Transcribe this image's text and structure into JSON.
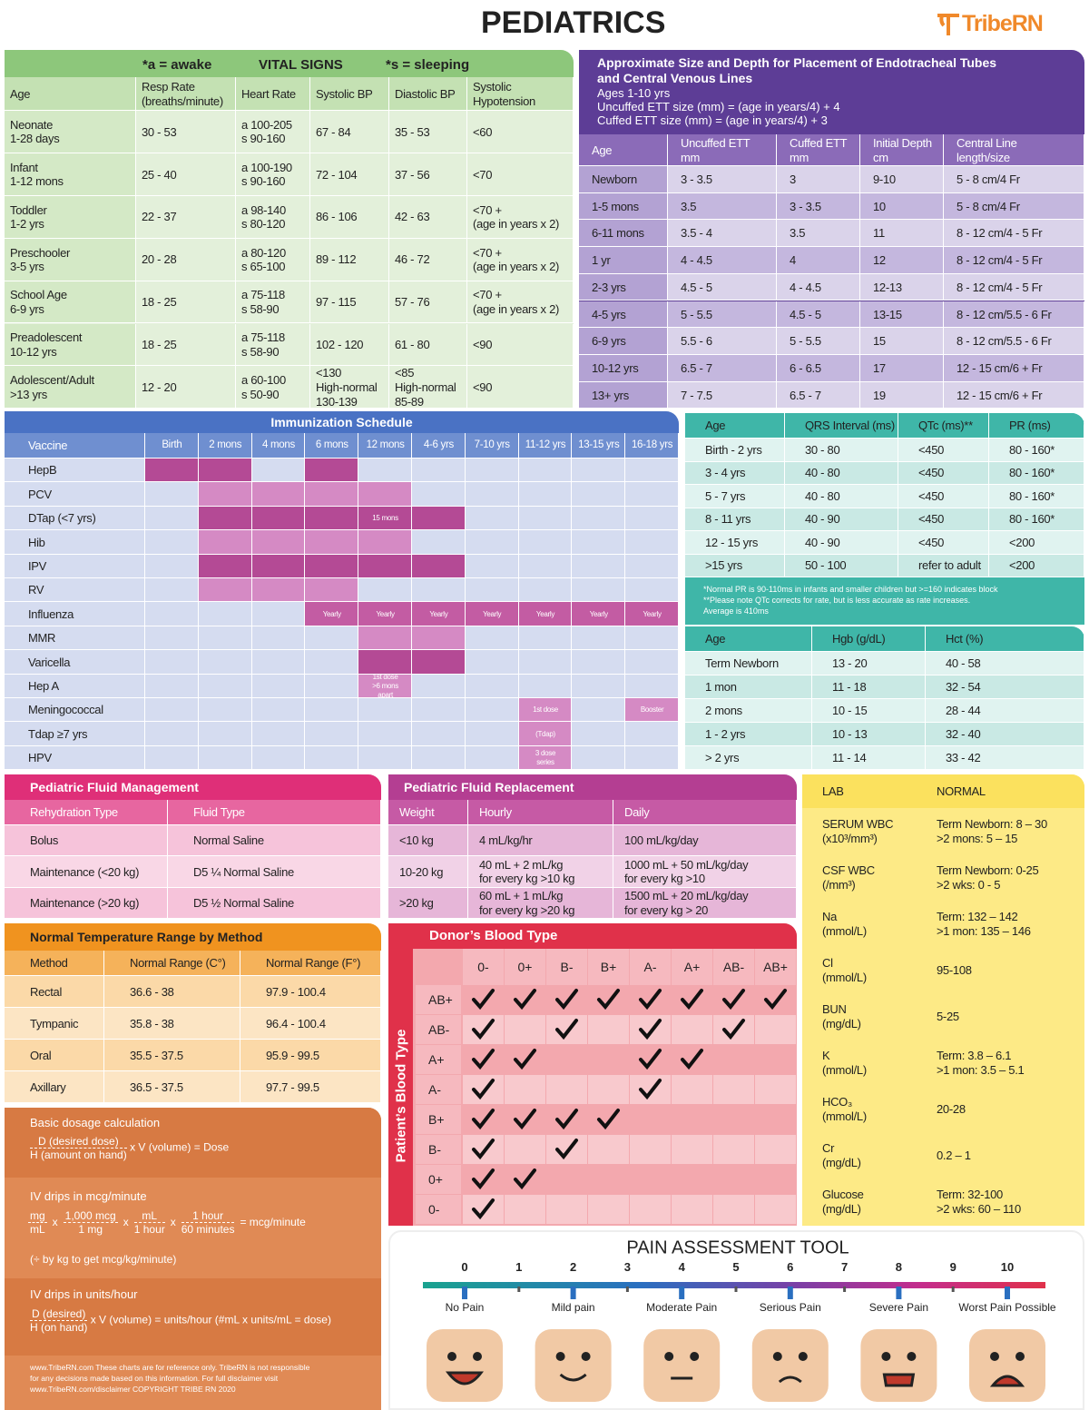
{
  "header": {
    "title": "PEDIATRICS",
    "logo": "TribeRN"
  },
  "vital_signs": {
    "note_awake": "*a = awake",
    "title": "VITAL SIGNS",
    "note_sleeping": "*s = sleeping",
    "columns": [
      "Age",
      [
        "Resp Rate",
        "(breaths/minute)"
      ],
      "Heart Rate",
      "Systolic BP",
      "Diastolic BP",
      [
        "Systolic",
        "Hypotension"
      ]
    ],
    "rows": [
      [
        [
          "Neonate",
          "1-28 days"
        ],
        "30 - 53",
        [
          "a 100-205",
          "s 90-160"
        ],
        "67 - 84",
        "35 - 53",
        "<60"
      ],
      [
        [
          "Infant",
          "1-12 mons"
        ],
        "25 - 40",
        [
          "a 100-190",
          "s 90-160"
        ],
        "72 - 104",
        "37 - 56",
        "<70"
      ],
      [
        [
          "Toddler",
          "1-2 yrs"
        ],
        "22 - 37",
        [
          "a 98-140",
          "s 80-120"
        ],
        "86 - 106",
        "42 - 63",
        [
          "<70 +",
          "(age in years x 2)"
        ]
      ],
      [
        [
          "Preschooler",
          "3-5 yrs"
        ],
        "20 - 28",
        [
          "a 80-120",
          "s 65-100"
        ],
        "89 - 112",
        "46 - 72",
        [
          "<70 +",
          "(age in years x 2)"
        ]
      ],
      [
        [
          "School Age",
          "6-9 yrs"
        ],
        "18 - 25",
        [
          "a 75-118",
          "s 58-90"
        ],
        "97 - 115",
        "57 - 76",
        [
          "<70 +",
          "(age in years x 2)"
        ]
      ],
      [
        [
          "Preadolescent",
          "10-12 yrs"
        ],
        "18 - 25",
        [
          "a 75-118",
          "s 58-90"
        ],
        "102 - 120",
        "61 - 80",
        "<90"
      ],
      [
        [
          "Adolescent/Adult",
          ">13 yrs"
        ],
        "12 - 20",
        [
          "a 60-100",
          "s 50-90"
        ],
        [
          "<130",
          "High-normal",
          "130-139"
        ],
        [
          "<85",
          "High-normal",
          "85-89"
        ],
        "<90"
      ]
    ]
  },
  "ett": {
    "title": [
      "Approximate Size and Depth for Placement of Endotracheal Tubes",
      "and Central Venous Lines"
    ],
    "formulas": [
      "Ages 1-10 yrs",
      "Uncuffed ETT size (mm) = (age in years/4) + 4",
      "Cuffed ETT size (mm) = (age in years/4) + 3"
    ],
    "columns": [
      "Age",
      [
        "Uncuffed ETT",
        "mm"
      ],
      [
        "Cuffed ETT",
        "mm"
      ],
      [
        "Initial Depth",
        "cm"
      ],
      [
        "Central Line",
        "length/size"
      ]
    ],
    "rows": [
      [
        "Newborn",
        "3 - 3.5",
        "3",
        "9-10",
        "5 - 8 cm/4 Fr"
      ],
      [
        "1-5 mons",
        "3.5",
        "3 - 3.5",
        "10",
        "5 - 8 cm/4 Fr"
      ],
      [
        "6-11 mons",
        "3.5 - 4",
        "3.5",
        "11",
        "8 - 12 cm/4 - 5 Fr"
      ],
      [
        "1 yr",
        "4 - 4.5",
        "4",
        "12",
        "8 - 12 cm/4 - 5 Fr"
      ],
      [
        "2-3 yrs",
        "4.5 - 5",
        "4 - 4.5",
        "12-13",
        "8 - 12 cm/4 - 5 Fr"
      ],
      [
        "4-5 yrs",
        "5 - 5.5",
        "4.5 - 5",
        "13-15",
        "8 - 12 cm/5.5 - 6 Fr"
      ],
      [
        "6-9 yrs",
        "5.5 - 6",
        "5 - 5.5",
        "15",
        "8 - 12 cm/5.5 - 6 Fr"
      ],
      [
        "10-12 yrs",
        "6.5 - 7",
        "6 - 6.5",
        "17",
        "12 - 15 cm/6 + Fr"
      ],
      [
        "13+ yrs",
        "7 - 7.5",
        "6.5 - 7",
        "19",
        "12 - 15 cm/6 + Fr"
      ]
    ]
  },
  "immunization": {
    "title": "Immunization Schedule",
    "columns": [
      "Vaccine",
      "Birth",
      "2 mons",
      "4 mons",
      "6 mons",
      "12 mons",
      "4-6 yrs",
      "7-10 yrs",
      "11-12 yrs",
      "13-15 yrs",
      "16-18 yrs"
    ],
    "rows": [
      [
        "HepB",
        {
          "color": "#b44a95"
        },
        {
          "color": "#b44a95"
        },
        null,
        {
          "color": "#b44a95"
        },
        null,
        null,
        null,
        null,
        null,
        null
      ],
      [
        "PCV",
        null,
        {
          "color": "#d58ac4"
        },
        {
          "color": "#d58ac4"
        },
        {
          "color": "#d58ac4"
        },
        {
          "color": "#d58ac4"
        },
        null,
        null,
        null,
        null,
        null
      ],
      [
        "DTap (<7 yrs)",
        null,
        {
          "color": "#b44a95"
        },
        {
          "color": "#b44a95"
        },
        {
          "color": "#b44a95"
        },
        {
          "color": "#b44a95",
          "text": "15 mons"
        },
        {
          "color": "#b44a95"
        },
        null,
        null,
        null,
        null
      ],
      [
        "Hib",
        null,
        {
          "color": "#d58ac4"
        },
        {
          "color": "#d58ac4"
        },
        {
          "color": "#d58ac4"
        },
        {
          "color": "#d58ac4"
        },
        null,
        null,
        null,
        null,
        null
      ],
      [
        "IPV",
        null,
        {
          "color": "#b44a95"
        },
        {
          "color": "#b44a95"
        },
        {
          "color": "#b44a95"
        },
        {
          "color": "#b44a95"
        },
        {
          "color": "#b44a95"
        },
        null,
        null,
        null,
        null
      ],
      [
        "RV",
        null,
        {
          "color": "#d58ac4"
        },
        {
          "color": "#d58ac4"
        },
        {
          "color": "#d58ac4"
        },
        null,
        null,
        null,
        null,
        null,
        null
      ],
      [
        "Influenza",
        null,
        null,
        null,
        {
          "color": "#c35ca3",
          "text": "Yearly"
        },
        {
          "color": "#c35ca3",
          "text": "Yearly"
        },
        {
          "color": "#c35ca3",
          "text": "Yearly"
        },
        {
          "color": "#c35ca3",
          "text": "Yearly"
        },
        {
          "color": "#c35ca3",
          "text": "Yearly"
        },
        {
          "color": "#c35ca3",
          "text": "Yearly"
        },
        {
          "color": "#c35ca3",
          "text": "Yearly"
        }
      ],
      [
        "MMR",
        null,
        null,
        null,
        null,
        {
          "color": "#d58ac4"
        },
        {
          "color": "#d58ac4"
        },
        null,
        null,
        null,
        null
      ],
      [
        "Varicella",
        null,
        null,
        null,
        null,
        {
          "color": "#b44a95"
        },
        {
          "color": "#b44a95"
        },
        null,
        null,
        null,
        null
      ],
      [
        "Hep A",
        null,
        null,
        null,
        null,
        {
          "color": "#d58ac4",
          "text": [
            "1st dose",
            ">6 mons",
            "apart"
          ]
        },
        null,
        null,
        null,
        null,
        null
      ],
      [
        "Meningococcal",
        null,
        null,
        null,
        null,
        null,
        null,
        null,
        {
          "color": "#d58ac4",
          "text": "1st dose"
        },
        null,
        {
          "color": "#d58ac4",
          "text": "Booster"
        }
      ],
      [
        "Tdap ≥7 yrs",
        null,
        null,
        null,
        null,
        null,
        null,
        null,
        {
          "color": "#d58ac4",
          "text": "(Tdap)"
        },
        null,
        null
      ],
      [
        "HPV",
        null,
        null,
        null,
        null,
        null,
        null,
        null,
        {
          "color": "#d58ac4",
          "text": [
            "3 dose",
            "series"
          ]
        },
        null,
        null
      ]
    ]
  },
  "ecg": {
    "columns": [
      "Age",
      "QRS Interval (ms)",
      "QTc (ms)**",
      "PR (ms)"
    ],
    "rows": [
      [
        "Birth - 2 yrs",
        "30 - 80",
        "<450",
        "80 - 160*"
      ],
      [
        "3 - 4 yrs",
        "40 - 80",
        "<450",
        "80 - 160*"
      ],
      [
        "5 - 7 yrs",
        "40 - 80",
        "<450",
        "80 - 160*"
      ],
      [
        "8 - 11 yrs",
        "40 - 90",
        "<450",
        "80 - 160*"
      ],
      [
        "12 - 15 yrs",
        "40 - 90",
        "<450",
        "<200"
      ],
      [
        ">15 yrs",
        "50 - 100",
        "refer to adult",
        "<200"
      ]
    ],
    "notes": [
      "*Normal PR is 90-110ms in infants and smaller children but >=160 indicates block",
      "**Please note QTc corrects for rate, but is less accurate as rate increases.",
      "Average is 410ms"
    ]
  },
  "hemoglobin": {
    "columns": [
      "Age",
      "Hgb (g/dL)",
      "Hct (%)"
    ],
    "rows": [
      [
        "Term Newborn",
        "13 - 20",
        "40 - 58"
      ],
      [
        "1 mon",
        "11 - 18",
        "32 - 54"
      ],
      [
        "2 mons",
        "10 - 15",
        "28 - 44"
      ],
      [
        "1 - 2 yrs",
        "10 - 13",
        "32 - 40"
      ],
      [
        "> 2 yrs",
        "11 - 14",
        "33 - 42"
      ]
    ]
  },
  "fluid_management": {
    "title": "Pediatric Fluid Management",
    "columns": [
      "Rehydration Type",
      "Fluid Type"
    ],
    "rows": [
      [
        "Bolus",
        "Normal Saline"
      ],
      [
        "Maintenance (<20 kg)",
        "D5 ¼ Normal Saline"
      ],
      [
        "Maintenance (>20 kg)",
        "D5 ½ Normal Saline"
      ]
    ]
  },
  "fluid_replacement": {
    "title": "Pediatric Fluid Replacement",
    "columns": [
      "Weight",
      "Hourly",
      "Daily"
    ],
    "rows": [
      [
        "<10 kg",
        "4 mL/kg/hr",
        "100 mL/kg/day"
      ],
      [
        "10-20 kg",
        [
          "40 mL + 2 mL/kg",
          "for every kg >10 kg"
        ],
        [
          "1000 mL + 50 mL/kg/day",
          "for every kg >10"
        ]
      ],
      [
        ">20 kg",
        [
          "60 mL + 1 mL/kg",
          "for every kg >20 kg"
        ],
        [
          "1500 mL + 20 mL/kg/day",
          "for every kg > 20"
        ]
      ]
    ]
  },
  "labs": {
    "columns": [
      "LAB",
      "NORMAL"
    ],
    "rows": [
      [
        [
          "SERUM WBC",
          "(x10³/mm³)"
        ],
        [
          "Term Newborn: 8 – 30",
          ">2 mons: 5 – 15"
        ]
      ],
      [
        [
          "CSF WBC",
          "(/mm³)"
        ],
        [
          "Term Newborn: 0-25",
          ">2 wks: 0 - 5"
        ]
      ],
      [
        [
          "Na",
          "(mmol/L)"
        ],
        [
          "Term: 132 – 142",
          ">1 mon: 135 – 146"
        ]
      ],
      [
        [
          "Cl",
          "(mmol/L)"
        ],
        "95-108"
      ],
      [
        [
          "BUN",
          "(mg/dL)"
        ],
        "5-25"
      ],
      [
        [
          "K",
          "(mmol/L)"
        ],
        [
          "Term: 3.8 – 6.1",
          ">1 mon: 3.5 – 5.1"
        ]
      ],
      [
        [
          "HCO₃",
          "(mmol/L)"
        ],
        "20-28"
      ],
      [
        [
          "Cr",
          "(mg/dL)"
        ],
        "0.2 – 1"
      ],
      [
        [
          "Glucose",
          "(mg/dL)"
        ],
        [
          "Term: 32-100",
          ">2 wks: 60 – 110"
        ]
      ]
    ]
  },
  "temperature": {
    "title": "Normal Temperature Range by Method",
    "columns": [
      "Method",
      "Normal Range (C°)",
      "Normal Range (F°)"
    ],
    "rows": [
      [
        "Rectal",
        "36.6 - 38",
        "97.9 - 100.4"
      ],
      [
        "Tympanic",
        "35.8 - 38",
        "96.4 - 100.4"
      ],
      [
        "Oral",
        "35.5 - 37.5",
        "95.9 - 99.5"
      ],
      [
        "Axillary",
        "36.5 - 37.5",
        "97.7 - 99.5"
      ]
    ]
  },
  "dosage": {
    "basic": {
      "title": "Basic dosage calculation",
      "numerator": "D (desired dose)",
      "tail": "x V (volume) = Dose",
      "denominator": "H (amount on hand)"
    },
    "mcg": {
      "title": "IV drips in mcg/minute",
      "fractions": [
        [
          "mg",
          "mL"
        ],
        [
          "1,000 mcg",
          "1 mg"
        ],
        [
          "mL",
          "1 hour"
        ],
        [
          "1 hour",
          "60 minutes"
        ]
      ],
      "operators": [
        "x",
        "x",
        "x",
        "= mcg/minute"
      ],
      "note": "(÷ by kg to get mcg/kg/minute)"
    },
    "units": {
      "title": "IV drips in units/hour",
      "numerator": "D (desired)",
      "tail": "x V (volume) = units/hour (#mL x units/mL = dose)",
      "denominator": "H (on hand)"
    },
    "footer": [
      "www.TribeRN.com  These charts are for reference only. TribeRN is not responsible",
      "for any decisions made based on this information. For full disclaimer visit",
      "www.TribeRN.com/disclaimer COPYRIGHT TRIBE RN 2020"
    ]
  },
  "blood_type": {
    "title": "Donor’s Blood Type",
    "side_label": "Patient’s Blood Type",
    "donors": [
      "0-",
      "0+",
      "B-",
      "B+",
      "A-",
      "A+",
      "AB-",
      "AB+"
    ],
    "patients": [
      "AB+",
      "AB-",
      "A+",
      "A-",
      "B+",
      "B-",
      "0+",
      "0-"
    ],
    "compatible": [
      [
        true,
        true,
        true,
        true,
        true,
        true,
        true,
        true
      ],
      [
        true,
        false,
        true,
        false,
        true,
        false,
        true,
        false
      ],
      [
        true,
        true,
        false,
        false,
        true,
        true,
        false,
        false
      ],
      [
        true,
        false,
        false,
        false,
        true,
        false,
        false,
        false
      ],
      [
        true,
        true,
        true,
        true,
        false,
        false,
        false,
        false
      ],
      [
        true,
        false,
        true,
        false,
        false,
        false,
        false,
        false
      ],
      [
        true,
        true,
        false,
        false,
        false,
        false,
        false,
        false
      ],
      [
        true,
        false,
        false,
        false,
        false,
        false,
        false,
        false
      ]
    ]
  },
  "pain": {
    "title": "PAIN ASSESSMENT TOOL",
    "scale": [
      0,
      1,
      2,
      3,
      4,
      5,
      6,
      7,
      8,
      9,
      10
    ],
    "labels": [
      "No Pain",
      "Mild pain",
      "Moderate Pain",
      "Serious Pain",
      "Severe Pain",
      "Worst Pain Possible"
    ]
  }
}
